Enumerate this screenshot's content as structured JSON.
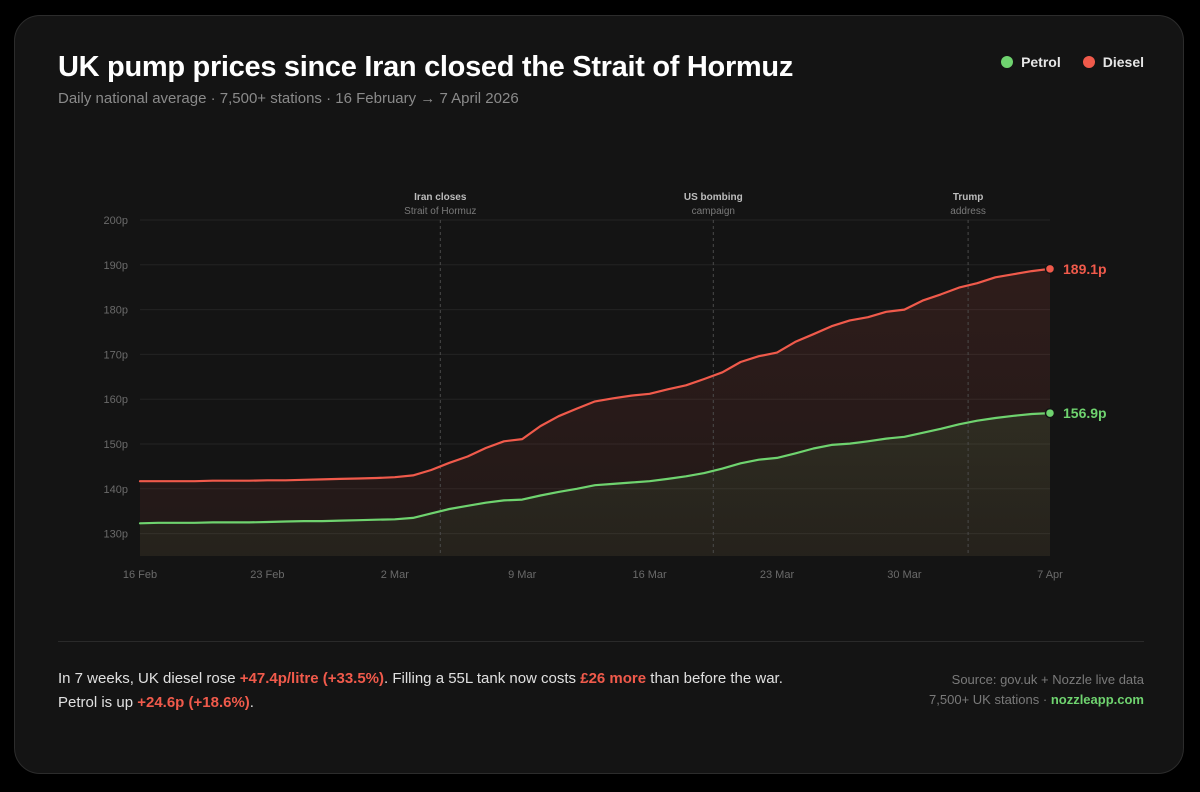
{
  "header": {
    "title": "UK pump prices since Iran closed the Strait of Hormuz",
    "subtitle": "Daily national average · 7,500+ stations · 16 February → 7 April 2026"
  },
  "legend": [
    {
      "label": "Petrol",
      "color": "#6fd36f"
    },
    {
      "label": "Diesel",
      "color": "#f05a4b"
    }
  ],
  "chart_data": {
    "type": "line",
    "y_tick_labels": [
      "200p",
      "190p",
      "180p",
      "170p",
      "160p",
      "150p",
      "140p",
      "130p"
    ],
    "y_ticks": [
      200,
      190,
      180,
      170,
      160,
      150,
      140,
      130
    ],
    "ylim": [
      125,
      200
    ],
    "x_tick_labels": [
      "16 Feb",
      "23 Feb",
      "2 Mar",
      "9 Mar",
      "16 Mar",
      "23 Mar",
      "30 Mar",
      "7 Apr"
    ],
    "x_tick_days": [
      0,
      7,
      14,
      21,
      28,
      35,
      42,
      50
    ],
    "x_start": "16 Feb",
    "x_end": "7 Apr",
    "x_days_total": 50,
    "grid": true,
    "annotations": [
      {
        "day": 16.5,
        "title": "Iran closes",
        "subtitle": "Strait of Hormuz"
      },
      {
        "day": 31.5,
        "title": "US bombing",
        "subtitle": "campaign"
      },
      {
        "day": 45.5,
        "title": "Trump",
        "subtitle": "address"
      }
    ],
    "series": [
      {
        "name": "Diesel",
        "color": "#f05a4b",
        "end_label": "189.1p",
        "values": [
          141.7,
          141.7,
          141.7,
          141.7,
          141.8,
          141.8,
          141.8,
          141.9,
          141.9,
          142.0,
          142.1,
          142.2,
          142.3,
          142.4,
          142.6,
          143.0,
          144.2,
          145.8,
          147.2,
          149.1,
          150.6,
          151.1,
          154.0,
          156.2,
          157.9,
          159.5,
          160.2,
          160.8,
          161.2,
          162.2,
          163.1,
          164.5,
          166.0,
          168.3,
          169.6,
          170.4,
          172.8,
          174.5,
          176.3,
          177.6,
          178.3,
          179.5,
          180.0,
          182.0,
          183.4,
          184.9,
          185.9,
          187.2,
          187.9,
          188.6,
          189.1
        ]
      },
      {
        "name": "Petrol",
        "color": "#6fd36f",
        "end_label": "156.9p",
        "values": [
          132.3,
          132.4,
          132.4,
          132.4,
          132.5,
          132.5,
          132.5,
          132.6,
          132.7,
          132.8,
          132.8,
          132.9,
          133.0,
          133.1,
          133.2,
          133.5,
          134.5,
          135.5,
          136.2,
          136.9,
          137.4,
          137.6,
          138.5,
          139.3,
          140.0,
          140.8,
          141.1,
          141.4,
          141.7,
          142.2,
          142.8,
          143.5,
          144.5,
          145.7,
          146.5,
          146.9,
          147.9,
          149.0,
          149.8,
          150.1,
          150.6,
          151.2,
          151.6,
          152.5,
          153.4,
          154.4,
          155.2,
          155.8,
          156.3,
          156.7,
          156.9
        ]
      }
    ]
  },
  "footer": {
    "text_1": "In 7 weeks, UK diesel rose ",
    "diesel_rise": "+47.4p/litre (+33.5%)",
    "text_2": ". Filling a 55L tank now costs ",
    "tank_cost": "£26 more",
    "text_3": " than before the war.",
    "text_4": "Petrol is up ",
    "petrol_rise": "+24.6p (+18.6%)",
    "text_5": ".",
    "source_line": "Source: gov.uk + Nozzle live data",
    "stations_text": "7,500+ UK stations · ",
    "site": "nozzleapp.com"
  }
}
